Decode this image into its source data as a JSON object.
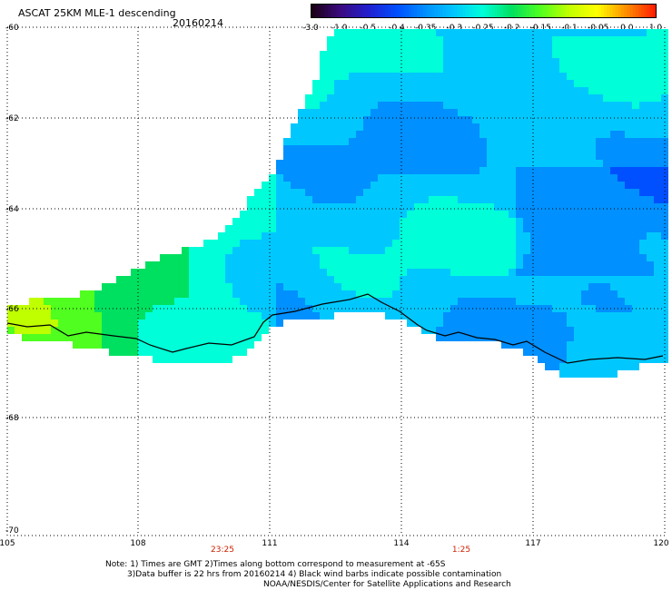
{
  "header": {
    "title": "ASCAT 25KM MLE-1 descending",
    "date": "20160214"
  },
  "colorbar": {
    "labels": [
      "-3.0",
      "-1.0",
      "-0.5",
      "-0.4",
      "-0.35",
      "-0.3",
      "-0.25",
      "-0.2",
      "-0.15",
      "-0.1",
      "-0.05",
      "0.0",
      "1.0"
    ],
    "colors": [
      "#1a0015",
      "#3a0a80",
      "#2020d0",
      "#0050ff",
      "#0090ff",
      "#00c8ff",
      "#00ffd8",
      "#00e060",
      "#50ff20",
      "#c0ff00",
      "#ffff00",
      "#ff9000",
      "#ff2000"
    ]
  },
  "axes": {
    "lat_labels": [
      "-60",
      "-62",
      "-64",
      "-66",
      "-68",
      "-70"
    ],
    "lon_labels": [
      "105",
      "108",
      "111",
      "114",
      "117",
      "120"
    ]
  },
  "pass_times": [
    "23:25",
    "1:25"
  ],
  "notes": {
    "line1": "Note: 1) Times are GMT 2)Times along bottom correspond to measurement at -65S",
    "line2": "3)Data buffer is 22 hrs from 20160214 4) Black wind barbs indicate possible contamination",
    "line3": "NOAA/NESDIS/Center for Satellite Applications and Research"
  }
}
